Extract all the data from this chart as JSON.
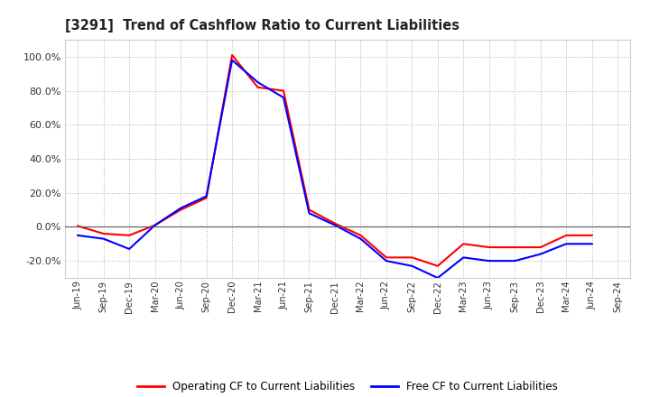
{
  "title": "[3291]  Trend of Cashflow Ratio to Current Liabilities",
  "x_labels": [
    "Jun-19",
    "Sep-19",
    "Dec-19",
    "Mar-20",
    "Jun-20",
    "Sep-20",
    "Dec-20",
    "Mar-21",
    "Jun-21",
    "Sep-21",
    "Dec-21",
    "Mar-22",
    "Jun-22",
    "Sep-22",
    "Dec-22",
    "Mar-23",
    "Jun-23",
    "Sep-23",
    "Dec-23",
    "Mar-24",
    "Jun-24",
    "Sep-24"
  ],
  "operating_cf": [
    0.5,
    -4.0,
    -5.0,
    1.0,
    10.0,
    17.0,
    101.0,
    82.0,
    80.0,
    10.0,
    2.0,
    -5.0,
    -18.0,
    -18.0,
    -23.0,
    -10.0,
    -12.0,
    -12.0,
    -12.0,
    -5.0,
    -5.0,
    null
  ],
  "free_cf": [
    -5.0,
    -7.0,
    -13.0,
    1.0,
    11.0,
    18.0,
    98.0,
    85.0,
    76.0,
    8.0,
    1.0,
    -7.0,
    -20.0,
    -23.0,
    -30.0,
    -18.0,
    -20.0,
    -20.0,
    -16.0,
    -10.0,
    -10.0,
    null
  ],
  "operating_color": "#ff0000",
  "free_color": "#0000ff",
  "ylim": [
    -30,
    110
  ],
  "yticks": [
    -20,
    0,
    20,
    40,
    60,
    80,
    100
  ],
  "background_color": "#ffffff",
  "grid_color": "#aaaaaa",
  "legend_labels": [
    "Operating CF to Current Liabilities",
    "Free CF to Current Liabilities"
  ]
}
